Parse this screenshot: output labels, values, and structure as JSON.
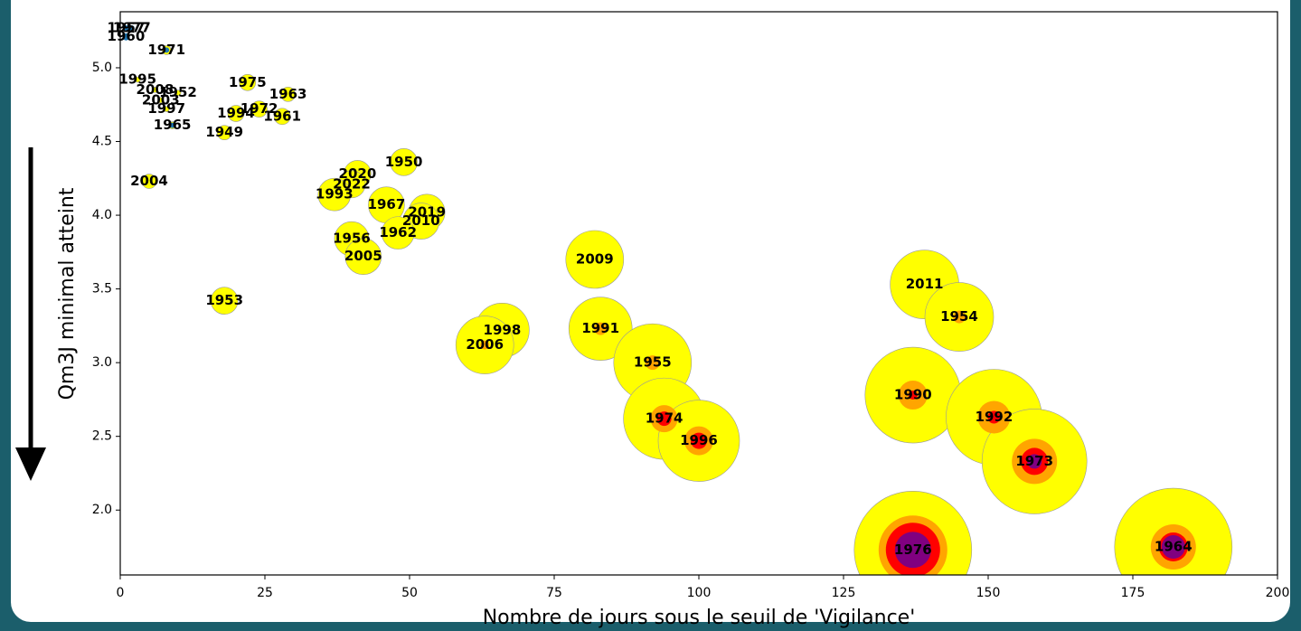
{
  "chart_data": {
    "type": "bubble",
    "xlabel": "Nombre de jours sous le seuil de 'Vigilance'",
    "ylabel": "Qm3J minimal atteint",
    "xlim": [
      0,
      200
    ],
    "xticks": [
      0,
      25,
      50,
      75,
      100,
      125,
      150,
      175,
      200
    ],
    "ylim": [
      1.56,
      5.38
    ],
    "yticks": [
      {
        "value": 2,
        "label": "2.0"
      },
      {
        "value": 2.5,
        "label": "2.5"
      },
      {
        "value": 3,
        "label": "3.0"
      },
      {
        "value": 3.5,
        "label": "3.5"
      },
      {
        "value": 4,
        "label": "4.0"
      },
      {
        "value": 4.5,
        "label": "4.5"
      },
      {
        "value": 5,
        "label": "5.0"
      }
    ],
    "labels": [
      "1960",
      "1957",
      "1977",
      "1971",
      "1995",
      "2008",
      "1952",
      "2003",
      "1997",
      "1965",
      "1975",
      "1963",
      "1994",
      "1972",
      "1961",
      "1949",
      "2004",
      "1950",
      "2020",
      "2022",
      "1993",
      "1967",
      "2019",
      "2010",
      "1962",
      "1956",
      "2005",
      "1953",
      "2009",
      "2011",
      "1954",
      "1998",
      "1991",
      "2006",
      "1955",
      "1990",
      "1974",
      "1992",
      "1996",
      "1973",
      "1976",
      "1964"
    ],
    "x": [
      1,
      1,
      2,
      8,
      3,
      6,
      10,
      7,
      8,
      9,
      22,
      29,
      20,
      24,
      28,
      18,
      5,
      49,
      41,
      40,
      37,
      46,
      53,
      52,
      48,
      40,
      42,
      18,
      82,
      139,
      145,
      66,
      83,
      63,
      92,
      137,
      94,
      151,
      100,
      158,
      137,
      182
    ],
    "y": [
      5.21,
      5.27,
      5.27,
      5.12,
      4.92,
      4.85,
      4.83,
      4.78,
      4.72,
      4.61,
      4.9,
      4.82,
      4.69,
      4.72,
      4.67,
      4.56,
      4.23,
      4.36,
      4.28,
      4.21,
      4.14,
      4.07,
      4.02,
      3.96,
      3.88,
      3.84,
      3.72,
      3.42,
      3.7,
      3.53,
      3.31,
      3.22,
      3.23,
      3.12,
      3.0,
      2.78,
      2.62,
      2.63,
      2.47,
      2.33,
      1.73,
      1.75
    ],
    "series": [
      {
        "color": "#ffff00",
        "sizes": [
          0,
          0,
          0,
          5,
          3,
          3,
          3,
          3,
          3,
          4,
          9,
          8,
          9,
          9,
          9,
          8,
          8,
          15,
          15,
          15,
          18,
          20,
          20,
          20,
          18,
          19,
          20,
          15,
          32,
          38,
          38,
          30,
          35,
          32,
          43,
          53,
          45,
          53,
          45,
          58,
          65,
          65
        ]
      },
      {
        "color": "#ffa500",
        "sizes": [
          0,
          0,
          0,
          0,
          0,
          0,
          0,
          0,
          0,
          0,
          0,
          0,
          0,
          0,
          0,
          0,
          0,
          0,
          0,
          0,
          0,
          0,
          0,
          0,
          0,
          0,
          0,
          0,
          0,
          0,
          7,
          0,
          7,
          5,
          8,
          16,
          15,
          18,
          16,
          25,
          38,
          25
        ]
      },
      {
        "color": "#ff0000",
        "sizes": [
          0,
          0,
          0,
          0,
          0,
          0,
          0,
          0,
          0,
          0,
          0,
          0,
          0,
          0,
          0,
          0,
          0,
          0,
          0,
          0,
          0,
          0,
          0,
          0,
          0,
          0,
          0,
          0,
          0,
          0,
          0,
          0,
          0,
          0,
          0,
          5,
          8,
          7,
          9,
          15,
          30,
          16
        ]
      },
      {
        "color": "#800080",
        "sizes": [
          0,
          0,
          0,
          0,
          0,
          0,
          0,
          0,
          0,
          0,
          0,
          0,
          0,
          0,
          0,
          0,
          0,
          0,
          0,
          0,
          0,
          0,
          0,
          0,
          0,
          0,
          0,
          0,
          0,
          0,
          0,
          0,
          0,
          0,
          0,
          0,
          0,
          0,
          0,
          8,
          20,
          13
        ]
      },
      {
        "color": "#1f77b4",
        "sizes": [
          4,
          3,
          3,
          3,
          0,
          0,
          0,
          0,
          0,
          3,
          0,
          0,
          0,
          0,
          0,
          0,
          0,
          0,
          0,
          0,
          0,
          0,
          0,
          0,
          0,
          0,
          0,
          0,
          0,
          0,
          0,
          0,
          0,
          0,
          0,
          0,
          0,
          0,
          0,
          0,
          0,
          0
        ]
      }
    ]
  }
}
